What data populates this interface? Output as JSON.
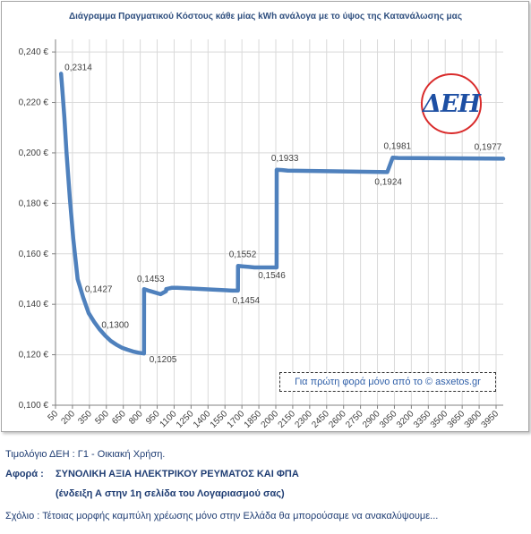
{
  "chart_data": {
    "type": "line",
    "title": "Διάγραμμα Πραγματικού Κόστους κάθε μίας kWh ανάλογα με το ύψος της Κατανάλωσης μας",
    "xlabel": "",
    "ylabel": "",
    "x_ticks": [
      "50",
      "200",
      "350",
      "500",
      "650",
      "800",
      "950",
      "1100",
      "1250",
      "1400",
      "1550",
      "1700",
      "1850",
      "2000",
      "2150",
      "2300",
      "2450",
      "2600",
      "2750",
      "2900",
      "3050",
      "3200",
      "3350",
      "3500",
      "3650",
      "3800",
      "3950"
    ],
    "y_ticks": [
      "0,100 €",
      "0,120 €",
      "0,140 €",
      "0,160 €",
      "0,180 €",
      "0,200 €",
      "0,220 €",
      "0,240 €"
    ],
    "ylim": [
      0.1,
      0.245
    ],
    "xlim": [
      0,
      4050
    ],
    "grid": true,
    "series": [
      {
        "x": [
          50,
          60,
          80,
          100,
          130,
          160,
          200,
          250,
          300,
          350,
          400,
          450,
          500,
          550,
          600,
          650,
          700,
          750,
          800,
          801,
          850,
          950,
          1000,
          1001,
          1050,
          1100,
          1600,
          1650,
          1651,
          1700,
          1750,
          1800,
          2000,
          2001,
          2050,
          2100,
          3000,
          3001,
          3050,
          3100,
          4050
        ],
        "y": [
          0.2314,
          0.226,
          0.214,
          0.2,
          0.182,
          0.166,
          0.15,
          0.1427,
          0.1365,
          0.133,
          0.13,
          0.1275,
          0.1255,
          0.124,
          0.1228,
          0.122,
          0.1213,
          0.1208,
          0.1205,
          0.146,
          0.1453,
          0.144,
          0.1452,
          0.146,
          0.1465,
          0.1465,
          0.1454,
          0.1454,
          0.1552,
          0.155,
          0.1548,
          0.1546,
          0.1546,
          0.1933,
          0.1932,
          0.193,
          0.1924,
          0.1924,
          0.1981,
          0.198,
          0.1977
        ]
      }
    ],
    "annotations": [
      {
        "text": "0,2314",
        "x": 50,
        "y": 0.2314
      },
      {
        "text": "0,1427",
        "x": 250,
        "y": 0.1427
      },
      {
        "text": "0,1300",
        "x": 400,
        "y": 0.13
      },
      {
        "text": "0,1453",
        "x": 850,
        "y": 0.1453
      },
      {
        "text": "0,1205",
        "x": 800,
        "y": 0.1205
      },
      {
        "text": "0,1552",
        "x": 1650,
        "y": 0.1552
      },
      {
        "text": "0,1454",
        "x": 1600,
        "y": 0.1454
      },
      {
        "text": "0,1546",
        "x": 1800,
        "y": 0.1546
      },
      {
        "text": "0,1933",
        "x": 2000,
        "y": 0.1933
      },
      {
        "text": "0,1924",
        "x": 3000,
        "y": 0.1924
      },
      {
        "text": "0,1981",
        "x": 3050,
        "y": 0.1981
      },
      {
        "text": "0,1977",
        "x": 3950,
        "y": 0.1977
      }
    ],
    "line_color": "#4f81bd"
  },
  "logo_text": "ΔΕΗ",
  "credit_text": "Για πρώτη φορά μόνο από το © asxetos.gr",
  "caption": {
    "tariff": "Τιμολόγιο ΔΕΗ : Γ1 - Οικιακή Χρήση.",
    "regarding_label": "Αφορά :",
    "regarding_value": "ΣΥΝΟΛΙΚΗ ΑΞΙΑ ΗΛΕΚΤΡΙΚΟΥ ΡΕΥΜΑΤΟΣ ΚΑΙ ΦΠΑ",
    "note": "(ένδειξη Α στην 1η σελίδα του Λογαριασμού σας)",
    "comment": "Σχόλιο : Τέτοιας μορφής καμπύλη χρέωσης μόνο στην Ελλάδα θα μπορούσαμε να ανακαλύψουμε..."
  }
}
